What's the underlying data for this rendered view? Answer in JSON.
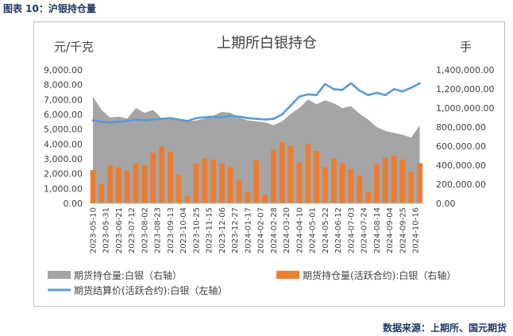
{
  "figure_caption": "图表 10：沪银持仓量",
  "source_note": "数据来源：上期所、国元期货",
  "colors": {
    "open_interest": "#a5a5a5",
    "active_contract": "#ed7d31",
    "settlement_price": "#5b9bd5",
    "caption": "#1f3864"
  },
  "chart_data": {
    "type": "bar",
    "title": "上期所白银持仓",
    "left_axis_unit": "元/千克",
    "right_axis_unit": "手",
    "left_ylim": [
      0,
      9000
    ],
    "right_ylim": [
      0,
      1400000
    ],
    "left_ticks": [
      "9,000.00",
      "8,000.00",
      "7,000.00",
      "6,000.00",
      "5,000.00",
      "4,000.00",
      "3,000.00",
      "2,000.00",
      "1,000.00",
      "0.00"
    ],
    "right_ticks": [
      "1,400,000.00",
      "1,200,000.00",
      "1,000,000.00",
      "800,000.00",
      "600,000.00",
      "400,000.00",
      "200,000.00",
      "0.00"
    ],
    "x_tick_labels": [
      "2023-05-10",
      "2023-05-31",
      "2023-06-21",
      "2023-07-12",
      "2023-08-02",
      "2023-08-23",
      "2023-09-13",
      "2023-10-04",
      "2023-10-25",
      "2023-11-15",
      "2023-12-06",
      "2023-12-27",
      "2024-01-17",
      "2024-02-07",
      "2024-02-28",
      "2024-03-20",
      "2024-04-10",
      "2024-05-01",
      "2024-05-22",
      "2024-06-12",
      "2024-07-03",
      "2024-07-24",
      "2024-08-14",
      "2024-09-04",
      "2024-09-25",
      "2024-10-16"
    ],
    "grid": false,
    "legend_position": "bottom",
    "series": [
      {
        "name": "期货持仓量:白银（右轴）",
        "type": "area",
        "axis": "right",
        "x": [
          "2023-05-10",
          "2023-05-24",
          "2023-06-07",
          "2023-06-21",
          "2023-07-05",
          "2023-07-19",
          "2023-08-02",
          "2023-08-16",
          "2023-08-30",
          "2023-09-13",
          "2023-09-27",
          "2023-10-11",
          "2023-10-25",
          "2023-11-08",
          "2023-11-22",
          "2023-12-06",
          "2023-12-20",
          "2024-01-03",
          "2024-01-17",
          "2024-01-31",
          "2024-02-14",
          "2024-02-28",
          "2024-03-13",
          "2024-03-27",
          "2024-04-10",
          "2024-04-24",
          "2024-05-08",
          "2024-05-22",
          "2024-06-05",
          "2024-06-19",
          "2024-07-03",
          "2024-07-17",
          "2024-07-31",
          "2024-08-14",
          "2024-08-28",
          "2024-09-11",
          "2024-09-25",
          "2024-10-09",
          "2024-10-23"
        ],
        "values": [
          1120000,
          980000,
          900000,
          910000,
          890000,
          1000000,
          950000,
          980000,
          890000,
          900000,
          880000,
          860000,
          870000,
          890000,
          920000,
          960000,
          950000,
          900000,
          870000,
          860000,
          850000,
          820000,
          860000,
          940000,
          1000000,
          1090000,
          1040000,
          1080000,
          1050000,
          1000000,
          1020000,
          940000,
          880000,
          800000,
          760000,
          740000,
          720000,
          690000,
          820000
        ]
      },
      {
        "name": "期货持仓量(活跃合约):白银（右轴）",
        "type": "bar",
        "axis": "right",
        "x": [
          "2023-05-10",
          "2023-05-24",
          "2023-06-07",
          "2023-06-21",
          "2023-07-05",
          "2023-07-19",
          "2023-08-02",
          "2023-08-16",
          "2023-08-30",
          "2023-09-13",
          "2023-09-27",
          "2023-10-11",
          "2023-10-25",
          "2023-11-08",
          "2023-11-22",
          "2023-12-06",
          "2023-12-20",
          "2024-01-03",
          "2024-01-17",
          "2024-01-31",
          "2024-02-14",
          "2024-02-28",
          "2024-03-13",
          "2024-03-27",
          "2024-04-10",
          "2024-04-24",
          "2024-05-08",
          "2024-05-22",
          "2024-06-05",
          "2024-06-19",
          "2024-07-03",
          "2024-07-17",
          "2024-07-31",
          "2024-08-14",
          "2024-08-28",
          "2024-09-11",
          "2024-09-25",
          "2024-10-09",
          "2024-10-23"
        ],
        "values": [
          350000,
          200000,
          400000,
          380000,
          340000,
          420000,
          400000,
          530000,
          600000,
          540000,
          300000,
          80000,
          420000,
          470000,
          460000,
          420000,
          380000,
          250000,
          120000,
          450000,
          90000,
          560000,
          640000,
          600000,
          430000,
          620000,
          550000,
          380000,
          470000,
          420000,
          360000,
          290000,
          120000,
          410000,
          480000,
          500000,
          460000,
          330000,
          420000
        ]
      },
      {
        "name": "期货结算价(活跃合约):白银（左轴）",
        "type": "line",
        "axis": "left",
        "x": [
          "2023-05-10",
          "2023-05-24",
          "2023-06-07",
          "2023-06-21",
          "2023-07-05",
          "2023-07-19",
          "2023-08-02",
          "2023-08-16",
          "2023-08-30",
          "2023-09-13",
          "2023-09-27",
          "2023-10-11",
          "2023-10-25",
          "2023-11-08",
          "2023-11-22",
          "2023-12-06",
          "2023-12-20",
          "2024-01-03",
          "2024-01-17",
          "2024-01-31",
          "2024-02-14",
          "2024-02-28",
          "2024-03-13",
          "2024-03-27",
          "2024-04-10",
          "2024-04-24",
          "2024-05-08",
          "2024-05-22",
          "2024-06-05",
          "2024-06-19",
          "2024-07-03",
          "2024-07-17",
          "2024-07-31",
          "2024-08-14",
          "2024-08-28",
          "2024-09-11",
          "2024-09-25",
          "2024-10-09",
          "2024-10-23"
        ],
        "values": [
          5600,
          5500,
          5450,
          5500,
          5550,
          5650,
          5600,
          5650,
          5700,
          5750,
          5650,
          5550,
          5750,
          5800,
          5850,
          5800,
          5900,
          5850,
          5750,
          5700,
          5650,
          5700,
          6000,
          6600,
          7200,
          7350,
          7300,
          8050,
          7700,
          7650,
          8100,
          7600,
          7300,
          7450,
          7300,
          7700,
          7550,
          7800,
          8100
        ]
      }
    ]
  }
}
